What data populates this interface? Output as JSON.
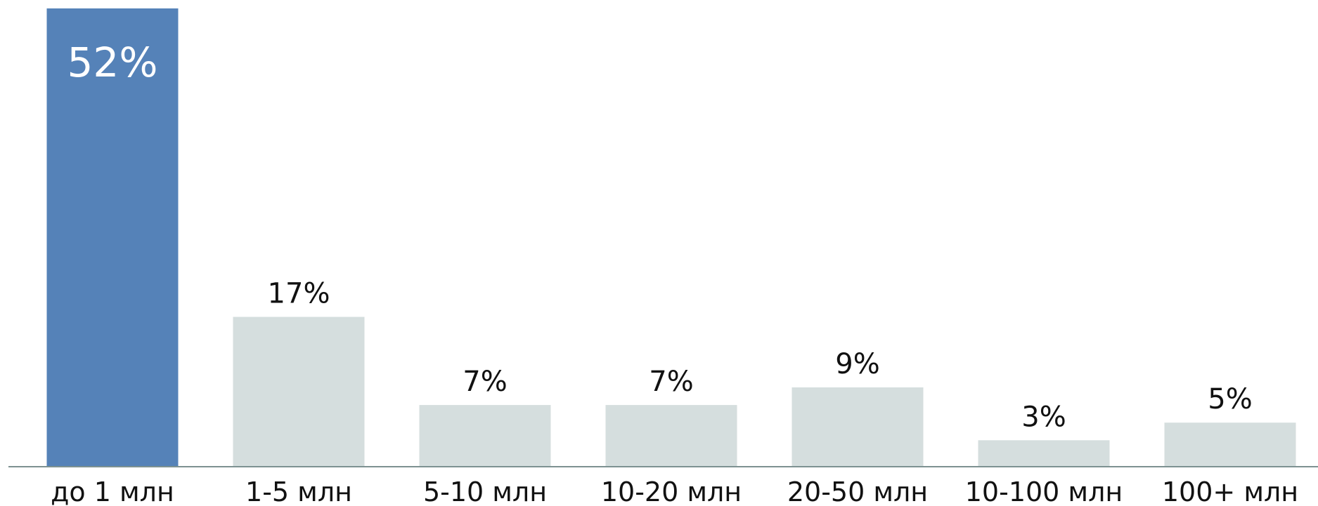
{
  "chart_data": {
    "type": "bar",
    "categories": [
      "до 1 млн",
      "1-5 млн",
      "5-10 млн",
      "10-20 млн",
      "20-50 млн",
      "10-100 млн",
      "100+ млн"
    ],
    "values": [
      52,
      17,
      7,
      7,
      9,
      3,
      5
    ],
    "value_labels": [
      "52%",
      "17%",
      "7%",
      "7%",
      "9%",
      "3%",
      "5%"
    ],
    "unit": "%",
    "title": "",
    "xlabel": "",
    "ylabel": "",
    "ylim": [
      0,
      52
    ],
    "grid": false,
    "legend": "none",
    "colors": {
      "highlight": "#5582b8",
      "default": "#d5dede",
      "axis": "#7d9191",
      "text": "#111111",
      "highlight_text": "#ffffff"
    },
    "highlight_index": 0
  }
}
